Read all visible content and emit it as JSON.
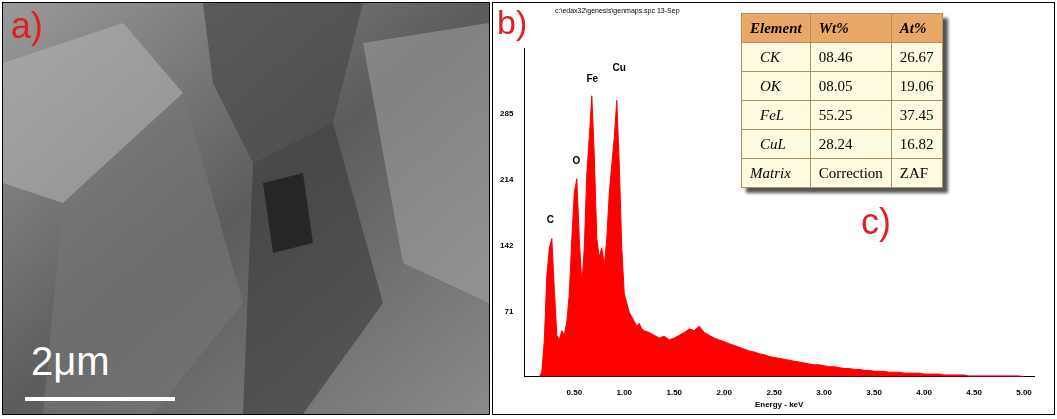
{
  "panel_labels": [
    "a)",
    "b)",
    "c)"
  ],
  "image": {
    "scale_bar": "2μm"
  },
  "chart_data": {
    "type": "area",
    "subtitle": "c:\\edax32\\genesis\\genmaps.spc 13-Sep",
    "x_label": "Energy - keV",
    "x": [
      0.15,
      0.175,
      0.2,
      0.225,
      0.25,
      0.275,
      0.3,
      0.325,
      0.35,
      0.375,
      0.4,
      0.425,
      0.45,
      0.475,
      0.5,
      0.525,
      0.55,
      0.575,
      0.6,
      0.625,
      0.65,
      0.675,
      0.7,
      0.725,
      0.75,
      0.775,
      0.8,
      0.825,
      0.85,
      0.875,
      0.9,
      0.925,
      0.95,
      0.975,
      1.0,
      1.025,
      1.05,
      1.075,
      1.1,
      1.125,
      1.15,
      1.175,
      1.2,
      1.25,
      1.3,
      1.35,
      1.4,
      1.45,
      1.5,
      1.55,
      1.6,
      1.65,
      1.7,
      1.75,
      1.8,
      1.85,
      1.9,
      1.95,
      2.0,
      2.05,
      2.1,
      2.15,
      2.2,
      2.25,
      2.3,
      2.35,
      2.4,
      2.45,
      2.5,
      2.55,
      2.6,
      2.65,
      2.7,
      2.75,
      2.8,
      2.85,
      2.9,
      2.95,
      3.0,
      3.05,
      3.1,
      3.15,
      3.2,
      3.25,
      3.3,
      3.35,
      3.4,
      3.45,
      3.5,
      3.55,
      3.6,
      3.65,
      3.7,
      3.75,
      3.8,
      3.85,
      3.9,
      3.95,
      4.0,
      4.05,
      4.1,
      4.15,
      4.2,
      4.25,
      4.3,
      4.35,
      4.4,
      4.45,
      4.5,
      4.55,
      4.6,
      4.65,
      4.7,
      4.75,
      4.8,
      4.85,
      4.9,
      4.95,
      5.0
    ],
    "values": [
      0,
      5,
      40,
      110,
      140,
      150,
      95,
      45,
      40,
      50,
      45,
      60,
      90,
      150,
      200,
      215,
      150,
      100,
      140,
      220,
      260,
      305,
      240,
      150,
      130,
      140,
      120,
      150,
      200,
      230,
      260,
      300,
      230,
      140,
      90,
      80,
      70,
      65,
      60,
      55,
      58,
      52,
      50,
      48,
      45,
      42,
      44,
      40,
      42,
      45,
      48,
      52,
      50,
      55,
      48,
      45,
      42,
      40,
      38,
      36,
      34,
      32,
      30,
      28,
      27,
      25,
      24,
      22,
      21,
      20,
      19,
      18,
      17,
      16,
      15,
      14,
      13,
      13,
      12,
      11,
      11,
      10,
      9,
      9,
      8,
      8,
      7,
      7,
      6,
      6,
      6,
      5,
      5,
      5,
      4,
      4,
      4,
      4,
      3,
      3,
      3,
      3,
      2,
      2,
      2,
      2,
      2,
      1,
      1,
      1,
      1,
      1,
      1,
      1,
      1,
      1,
      1,
      1,
      0
    ],
    "color": "#ff0000",
    "xlim": [
      0,
      5.1
    ],
    "xticks": [
      {
        "value": 0.5,
        "label": "0.50"
      },
      {
        "value": 1,
        "label": "1.00"
      },
      {
        "value": 1.5,
        "label": "1.50"
      },
      {
        "value": 2,
        "label": "2.00"
      },
      {
        "value": 2.5,
        "label": "2.50"
      },
      {
        "value": 3,
        "label": "3.00"
      },
      {
        "value": 3.5,
        "label": "3.50"
      },
      {
        "value": 4,
        "label": "4.00"
      },
      {
        "value": 4.5,
        "label": "4.50"
      },
      {
        "value": 5,
        "label": "5.00"
      }
    ],
    "ylim": [
      0,
      356
    ],
    "yticks": [
      71,
      142,
      214,
      285
    ],
    "grid": false,
    "annotations": [
      {
        "text": "C",
        "x": 0.26,
        "y": 165
      },
      {
        "text": "O",
        "x": 0.52,
        "y": 228
      },
      {
        "text": "Fe",
        "x": 0.68,
        "y": 318
      },
      {
        "text": "Cu",
        "x": 0.95,
        "y": 330
      }
    ]
  },
  "table": {
    "header": [
      "Element",
      "Wt%",
      "At%"
    ],
    "rows": [
      [
        "CK",
        "08.46",
        "26.67"
      ],
      [
        "OK",
        "08.05",
        "19.06"
      ],
      [
        "FeL",
        "55.25",
        "37.45"
      ],
      [
        "CuL",
        "28.24",
        "16.82"
      ],
      [
        "Matrix",
        "Correction",
        "ZAF"
      ]
    ]
  }
}
